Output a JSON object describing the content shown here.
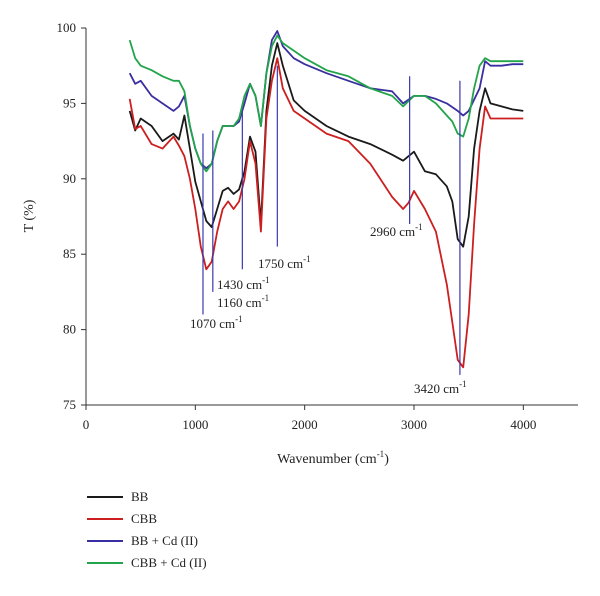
{
  "chart_data": {
    "type": "line",
    "title": "",
    "xlabel": "Wavenumber (cm",
    "xlabel_sup": "-1",
    "xlabel_suffix": ")",
    "ylabel": "T (%)",
    "xlim": [
      0,
      4500
    ],
    "ylim": [
      75,
      100
    ],
    "x_ticks": [
      0,
      1000,
      2000,
      3000,
      4000
    ],
    "y_ticks": [
      75,
      80,
      85,
      90,
      95,
      100
    ],
    "grid": false,
    "legend_position": "bottom-left",
    "series": [
      {
        "name": "BB",
        "color": "#1a1a1a",
        "x": [
          400,
          450,
          500,
          600,
          700,
          800,
          850,
          900,
          950,
          1000,
          1050,
          1100,
          1150,
          1200,
          1250,
          1300,
          1350,
          1400,
          1450,
          1500,
          1550,
          1600,
          1650,
          1700,
          1750,
          1800,
          1900,
          2000,
          2200,
          2400,
          2600,
          2800,
          2900,
          3000,
          3100,
          3200,
          3300,
          3350,
          3400,
          3450,
          3500,
          3550,
          3600,
          3650,
          3700,
          3800,
          3900,
          4000
        ],
        "y": [
          94.5,
          93.2,
          94.0,
          93.5,
          92.5,
          93.0,
          92.6,
          94.2,
          92.0,
          89.8,
          88.5,
          87.2,
          86.8,
          88.0,
          89.2,
          89.4,
          89.0,
          89.3,
          90.5,
          92.8,
          91.8,
          87.0,
          94.5,
          97.5,
          99.0,
          97.5,
          95.2,
          94.5,
          93.5,
          92.8,
          92.3,
          91.6,
          91.2,
          91.8,
          90.5,
          90.3,
          89.5,
          88.5,
          86.0,
          85.5,
          87.5,
          92.0,
          94.5,
          96.0,
          95.0,
          94.8,
          94.6,
          94.5
        ]
      },
      {
        "name": "CBB",
        "color": "#cc1f1f",
        "x": [
          400,
          450,
          500,
          600,
          700,
          800,
          850,
          900,
          950,
          1000,
          1050,
          1100,
          1150,
          1200,
          1250,
          1300,
          1350,
          1400,
          1450,
          1500,
          1550,
          1600,
          1650,
          1700,
          1750,
          1800,
          1900,
          2000,
          2200,
          2400,
          2600,
          2800,
          2900,
          2950,
          3000,
          3100,
          3200,
          3300,
          3350,
          3400,
          3450,
          3500,
          3550,
          3600,
          3650,
          3700,
          3800,
          3900,
          4000
        ],
        "y": [
          95.3,
          93.3,
          93.5,
          92.3,
          92.0,
          92.8,
          92.2,
          91.5,
          90.0,
          88.0,
          85.5,
          84.0,
          84.5,
          86.5,
          88.0,
          88.5,
          88.0,
          88.5,
          90.0,
          92.5,
          91.0,
          86.5,
          94.0,
          96.5,
          98.0,
          96.0,
          94.5,
          94.0,
          93.0,
          92.5,
          91.0,
          88.8,
          88.0,
          88.4,
          89.2,
          88.0,
          86.5,
          83.0,
          80.5,
          78.0,
          77.5,
          81.0,
          87.0,
          92.0,
          94.8,
          94.0,
          94.0,
          94.0,
          94.0
        ]
      },
      {
        "name": "BB + Cd (II)",
        "color": "#3a2fa0",
        "x": [
          400,
          450,
          500,
          600,
          700,
          800,
          850,
          900,
          950,
          1000,
          1050,
          1100,
          1150,
          1200,
          1250,
          1300,
          1350,
          1400,
          1450,
          1500,
          1550,
          1600,
          1650,
          1700,
          1750,
          1800,
          1900,
          2000,
          2200,
          2400,
          2600,
          2800,
          2900,
          3000,
          3100,
          3200,
          3300,
          3400,
          3450,
          3500,
          3600,
          3650,
          3700,
          3800,
          3900,
          4000
        ],
        "y": [
          97.0,
          96.3,
          96.5,
          95.5,
          95.0,
          94.5,
          94.8,
          95.5,
          93.5,
          92.0,
          91.0,
          90.7,
          91.0,
          92.5,
          93.5,
          93.5,
          93.5,
          93.8,
          95.0,
          96.3,
          95.5,
          93.5,
          97.0,
          99.2,
          99.8,
          98.8,
          98.0,
          97.6,
          97.0,
          96.5,
          96.0,
          95.8,
          95.0,
          95.5,
          95.5,
          95.3,
          95.0,
          94.5,
          94.2,
          94.5,
          96.0,
          97.8,
          97.5,
          97.5,
          97.6,
          97.6
        ]
      },
      {
        "name": "CBB + Cd (II)",
        "color": "#22a44a",
        "x": [
          400,
          450,
          500,
          600,
          700,
          800,
          850,
          900,
          950,
          1000,
          1050,
          1100,
          1150,
          1200,
          1250,
          1300,
          1350,
          1400,
          1450,
          1500,
          1550,
          1600,
          1650,
          1700,
          1750,
          1800,
          1900,
          2000,
          2200,
          2400,
          2600,
          2800,
          2900,
          3000,
          3100,
          3200,
          3300,
          3350,
          3400,
          3450,
          3500,
          3550,
          3600,
          3650,
          3700,
          3800,
          3900,
          4000
        ],
        "y": [
          99.2,
          98.0,
          97.5,
          97.2,
          96.8,
          96.5,
          96.5,
          95.8,
          93.5,
          92.0,
          91.0,
          90.5,
          91.0,
          92.5,
          93.5,
          93.5,
          93.5,
          94.0,
          95.5,
          96.3,
          95.5,
          93.5,
          97.0,
          98.8,
          99.5,
          99.0,
          98.5,
          98.0,
          97.2,
          96.8,
          96.0,
          95.5,
          94.8,
          95.5,
          95.5,
          95.0,
          94.2,
          93.8,
          93.0,
          92.8,
          94.0,
          96.0,
          97.5,
          98.0,
          97.8,
          97.8,
          97.8,
          97.8
        ]
      }
    ],
    "annotations": [
      {
        "text": "1070 cm",
        "sup": "-1",
        "x": 1070,
        "line_top": 93.0,
        "line_bottom": 81.0
      },
      {
        "text": "1160 cm",
        "sup": "-1",
        "x": 1160,
        "line_top": 93.2,
        "line_bottom": 82.5
      },
      {
        "text": "1430 cm",
        "sup": "-1",
        "x": 1430,
        "line_top": 94.5,
        "line_bottom": 84.0
      },
      {
        "text": "1750 cm",
        "sup": "-1",
        "x": 1750,
        "line_top": 97.5,
        "line_bottom": 85.5
      },
      {
        "text": "2960 cm",
        "sup": "-1",
        "x": 2960,
        "line_top": 96.8,
        "line_bottom": 87.0
      },
      {
        "text": "3420 cm",
        "sup": "-1",
        "x": 3420,
        "line_top": 96.5,
        "line_bottom": 77.0
      }
    ]
  }
}
